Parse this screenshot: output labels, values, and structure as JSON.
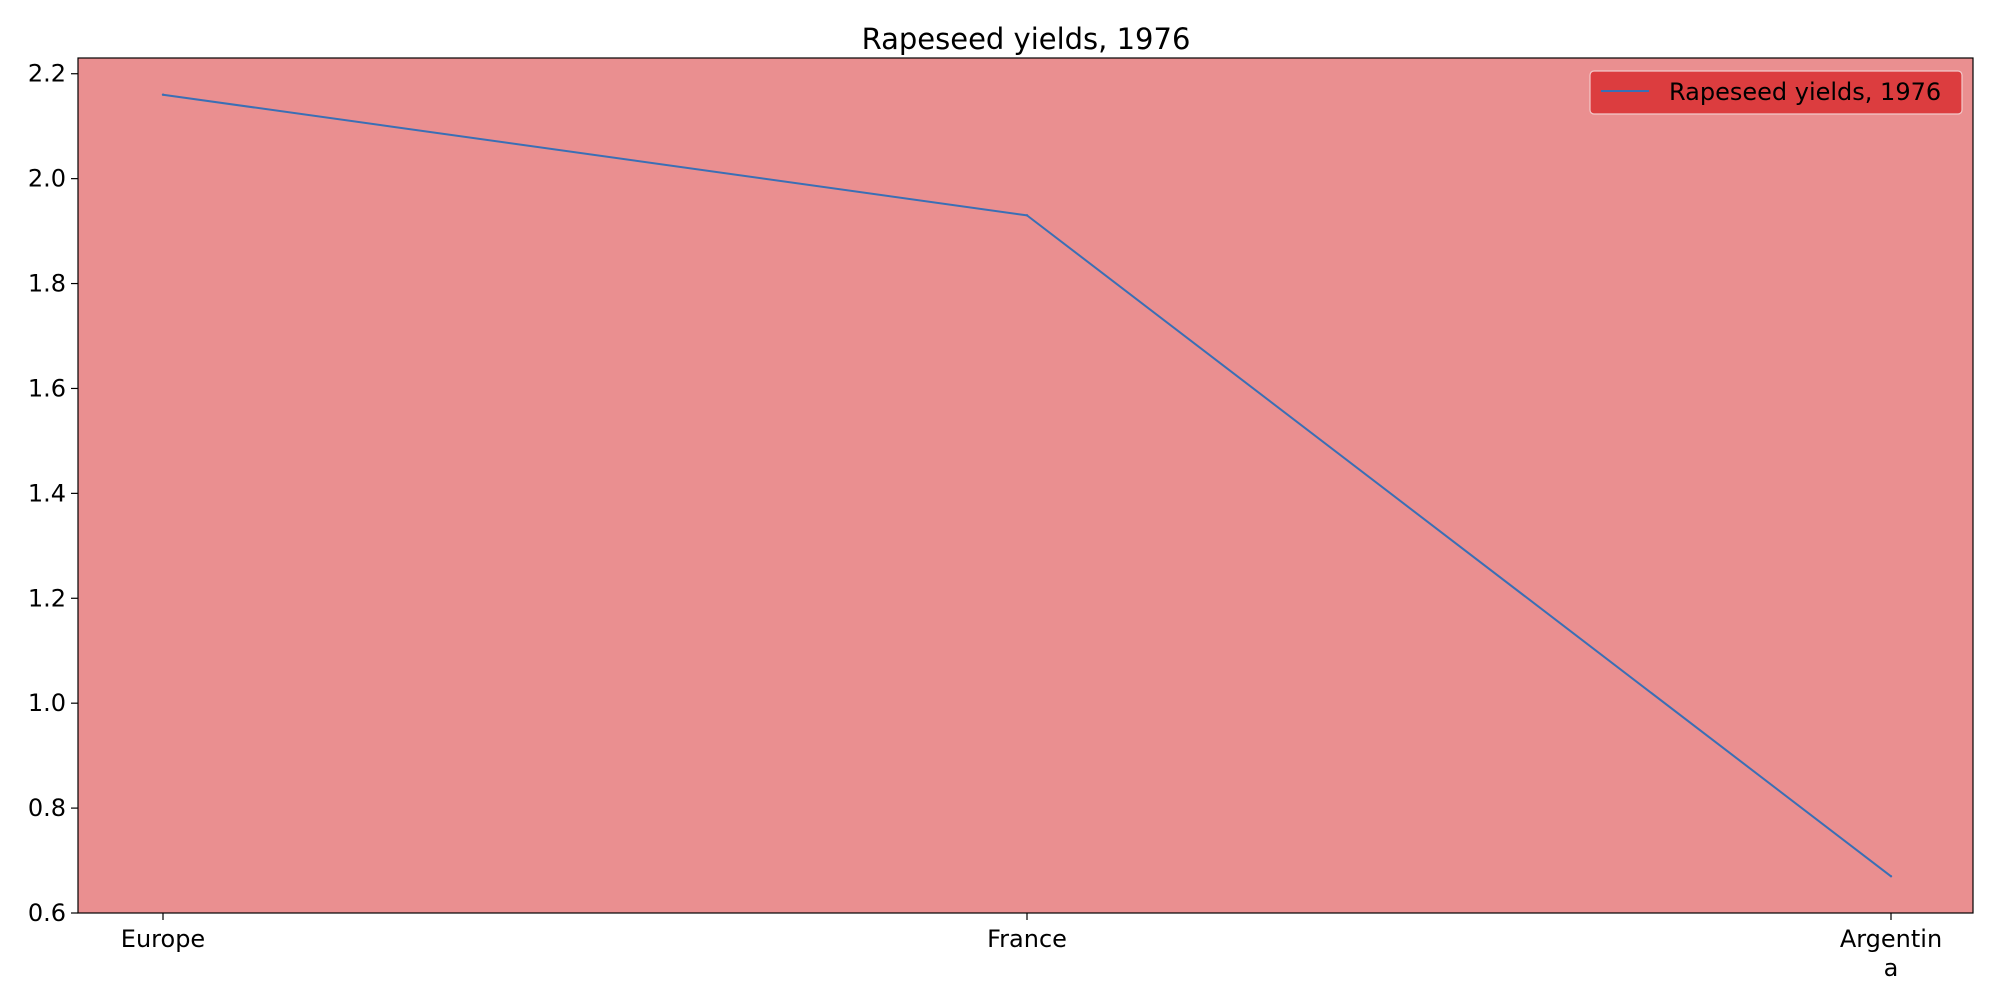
{
  "chart_data": {
    "type": "line",
    "title": "Rapeseed yields, 1976",
    "xlabel": "",
    "ylabel": "",
    "categories": [
      "Europe",
      "France",
      "Argentina"
    ],
    "category_display": [
      [
        "Europe"
      ],
      [
        "France"
      ],
      [
        "Argentin",
        "a"
      ]
    ],
    "series": [
      {
        "name": "Rapeseed yields, 1976",
        "values": [
          2.16,
          1.93,
          0.67
        ],
        "color": "#3a6fb5"
      }
    ],
    "ylim": [
      0.6,
      2.23
    ],
    "yticks": [
      0.6,
      0.8,
      1.0,
      1.2,
      1.4,
      1.6,
      1.8,
      2.0,
      2.2
    ],
    "ytick_labels": [
      "0.6",
      "0.8",
      "1.0",
      "1.2",
      "1.4",
      "1.6",
      "1.8",
      "2.0",
      "2.2"
    ],
    "grid": false,
    "legend_position": "top-right",
    "colors": {
      "plot_background": "#ea8f90",
      "legend_background": "#dc3d3f",
      "axis_frame": "#000000"
    }
  }
}
